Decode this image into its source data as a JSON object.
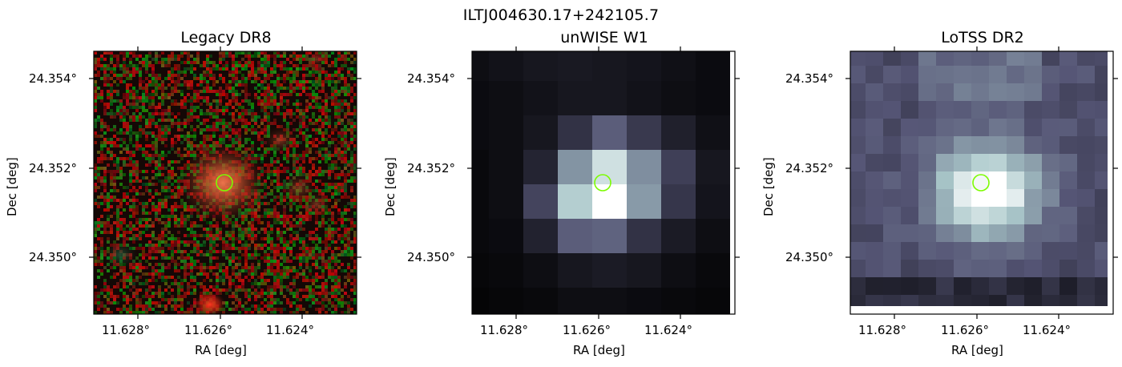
{
  "figure": {
    "suptitle": "ILTJ004630.17+242105.7",
    "panels": [
      {
        "id": "legacy",
        "title": "Legacy DR8",
        "xlabel": "RA [deg]",
        "ylabel": "Dec [deg]",
        "xticks": [
          "11.628°",
          "11.626°",
          "11.624°"
        ],
        "yticks": [
          "24.354°",
          "24.352°",
          "24.350°"
        ],
        "colormap": "rgb-noisy",
        "marker": "green-circle"
      },
      {
        "id": "unwise",
        "title": "unWISE W1",
        "xlabel": "RA [deg]",
        "ylabel": "Dec [deg]",
        "xticks": [
          "11.628°",
          "11.626°",
          "11.624°"
        ],
        "yticks": [
          "24.354°",
          "24.352°",
          "24.350°"
        ],
        "colormap": "bone",
        "marker": "green-circle"
      },
      {
        "id": "lotss",
        "title": "LoTSS DR2",
        "xlabel": "RA [deg]",
        "ylabel": "Dec [deg]",
        "xticks": [
          "11.628°",
          "11.626°",
          "11.624°"
        ],
        "yticks": [
          "24.354°",
          "24.352°",
          "24.350°"
        ],
        "colormap": "bone",
        "marker": "green-circle"
      }
    ],
    "colors": {
      "marker": "#7CFC00",
      "axes": "#000000"
    }
  }
}
